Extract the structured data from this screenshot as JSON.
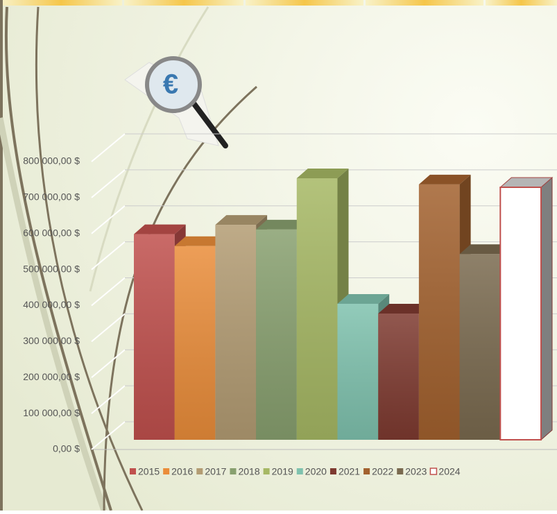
{
  "chart_data": {
    "type": "bar3d",
    "categories": [
      null
    ],
    "series": [
      {
        "name": "2015",
        "color": "#c0504d",
        "values": [
          570000
        ]
      },
      {
        "name": "2016",
        "color": "#ea8d3a",
        "values": [
          537000
        ]
      },
      {
        "name": "2017",
        "color": "#b39c73",
        "values": [
          596000
        ]
      },
      {
        "name": "2018",
        "color": "#88a06f",
        "values": [
          583000
        ]
      },
      {
        "name": "2019",
        "color": "#a6b864",
        "values": [
          725000
        ]
      },
      {
        "name": "2020",
        "color": "#7fc2ae",
        "values": [
          377000
        ]
      },
      {
        "name": "2021",
        "color": "#7e3a30",
        "values": [
          350000
        ]
      },
      {
        "name": "2022",
        "color": "#a2612e",
        "values": [
          708000
        ]
      },
      {
        "name": "2023",
        "color": "#7a6a4f",
        "values": [
          515000
        ]
      },
      {
        "name": "2024",
        "color": "#ffffff",
        "edge": "#c0504d",
        "values": [
          700000
        ]
      }
    ],
    "ylim": [
      0,
      800000
    ],
    "yticks": [
      {
        "value": 0,
        "label": "0,00 $"
      },
      {
        "value": 100000,
        "label": "100 000,00 $"
      },
      {
        "value": 200000,
        "label": "200 000,00 $"
      },
      {
        "value": 300000,
        "label": "300 000,00 $"
      },
      {
        "value": 400000,
        "label": "400 000,00 $"
      },
      {
        "value": 500000,
        "label": "500 000,00 $"
      },
      {
        "value": 600000,
        "label": "600 000,00 $"
      },
      {
        "value": 700000,
        "label": "700 000,00 $"
      },
      {
        "value": 800000,
        "label": "800 000,00 $"
      }
    ],
    "grid": true,
    "legend": "bottom"
  }
}
